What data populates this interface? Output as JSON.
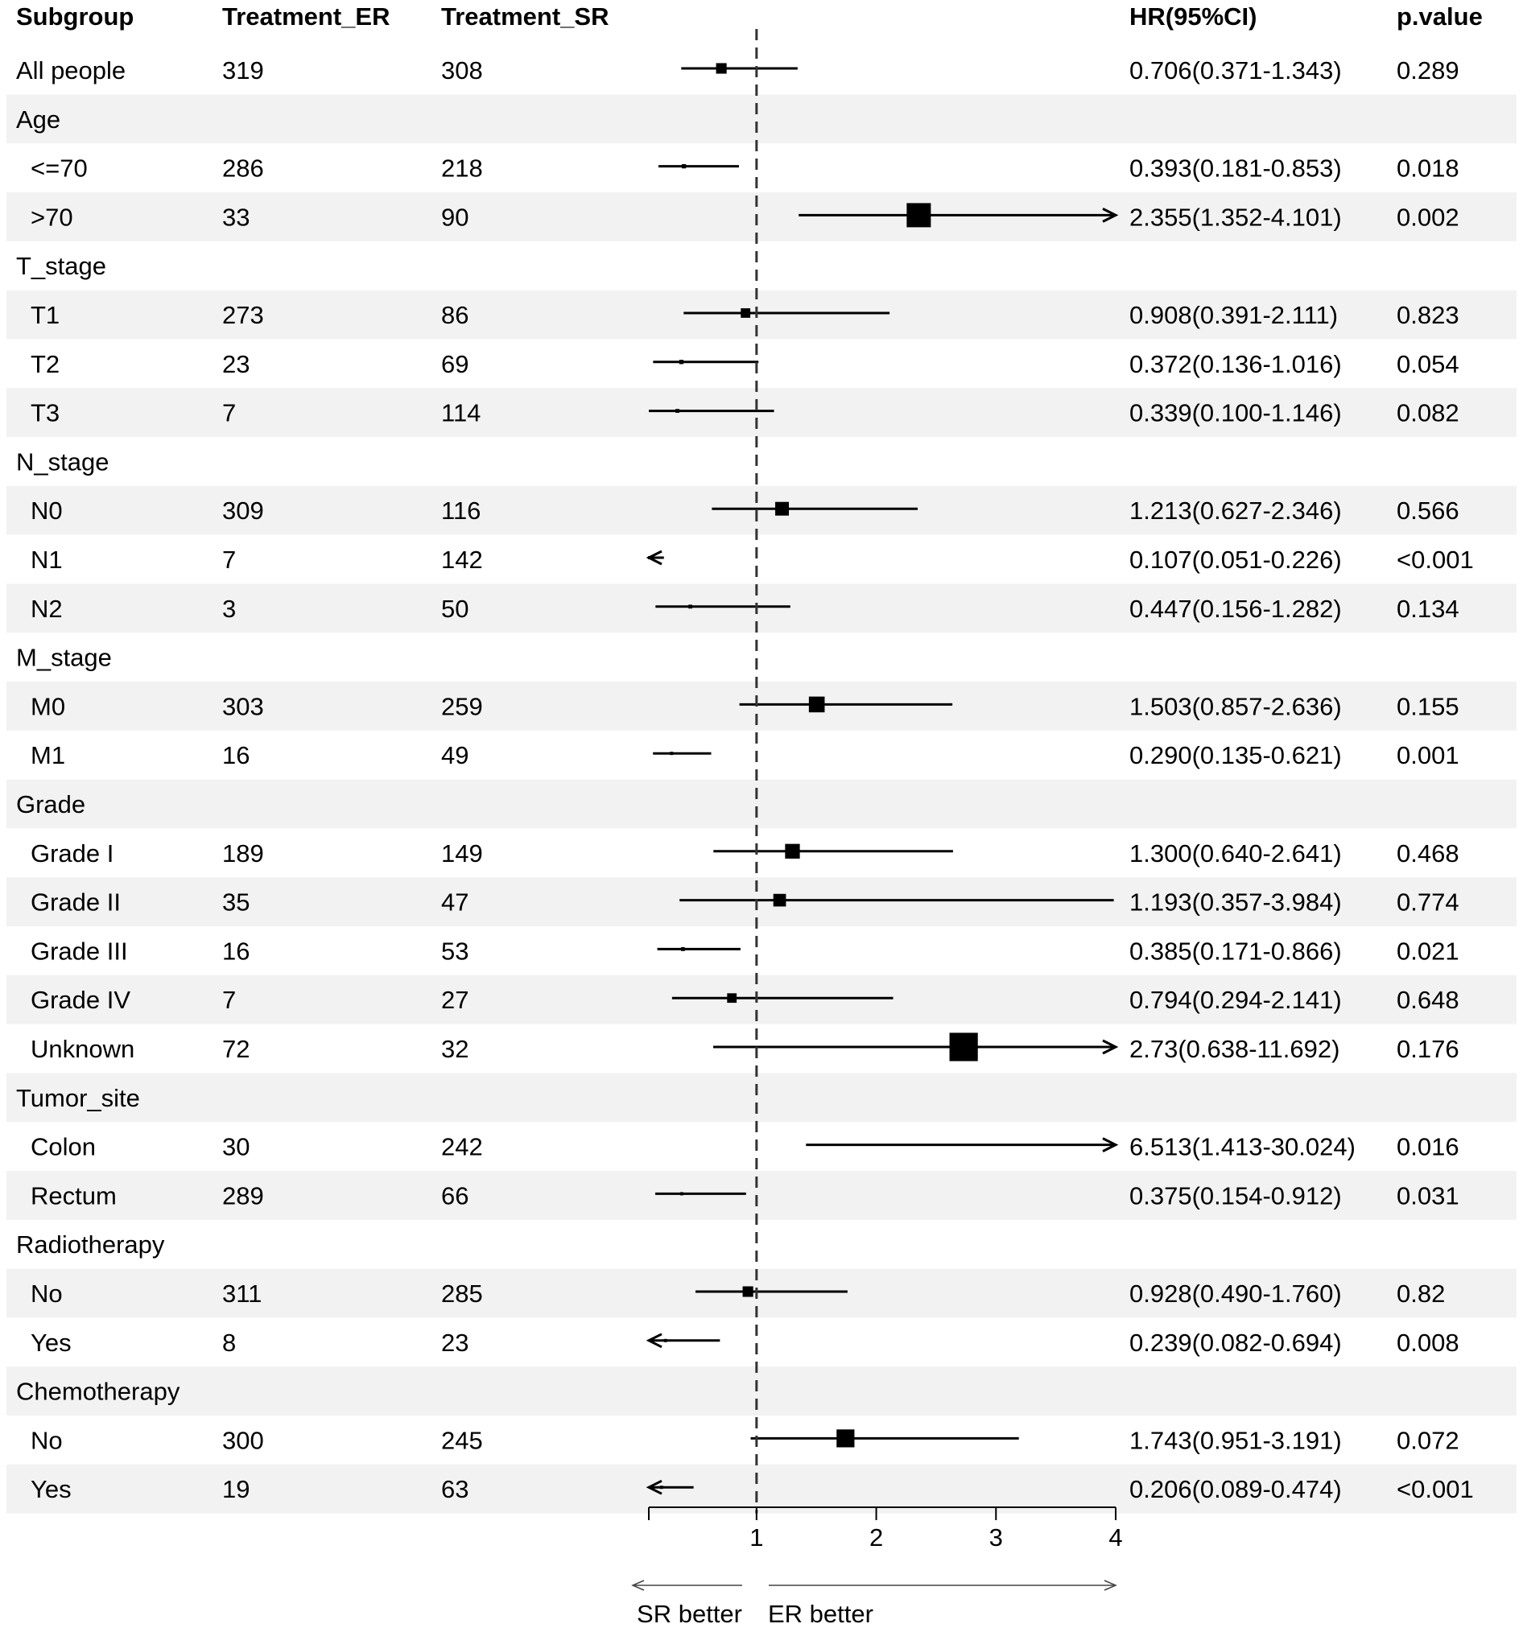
{
  "chart_data": {
    "type": "forest",
    "columns": {
      "subgroup": "Subgroup",
      "er": "Treatment_ER",
      "sr": "Treatment_SR",
      "hr": "HR(95%CI)",
      "p": "p.value"
    },
    "rows": [
      {
        "label": "All people",
        "indent": false,
        "header": false,
        "er": "319",
        "sr": "308",
        "hr_text": "0.706(0.371-1.343)",
        "p": "0.289",
        "hr": 0.706,
        "lo": 0.371,
        "hi": 1.343,
        "weight": 0.35
      },
      {
        "label": "Age",
        "header": true
      },
      {
        "label": "<=70",
        "indent": true,
        "header": false,
        "er": "286",
        "sr": "218",
        "hr_text": "0.393(0.181-0.853)",
        "p": "0.018",
        "hr": 0.393,
        "lo": 0.181,
        "hi": 0.853,
        "weight": 0.05
      },
      {
        "label": ">70",
        "indent": true,
        "header": false,
        "er": "33",
        "sr": "90",
        "hr_text": "2.355(1.352-4.101)",
        "p": "0.002",
        "hr": 2.355,
        "lo": 1.352,
        "hi": 4.101,
        "weight": 1.0
      },
      {
        "label": "T_stage",
        "header": true
      },
      {
        "label": "T1",
        "indent": true,
        "header": false,
        "er": "273",
        "sr": "86",
        "hr_text": "0.908(0.391-2.111)",
        "p": "0.823",
        "hr": 0.908,
        "lo": 0.391,
        "hi": 2.111,
        "weight": 0.3
      },
      {
        "label": "T2",
        "indent": true,
        "header": false,
        "er": "23",
        "sr": "69",
        "hr_text": "0.372(0.136-1.016)",
        "p": "0.054",
        "hr": 0.372,
        "lo": 0.136,
        "hi": 1.016,
        "weight": 0.05
      },
      {
        "label": "T3",
        "indent": true,
        "header": false,
        "er": "7",
        "sr": "114",
        "hr_text": "0.339(0.100-1.146)",
        "p": "0.082",
        "hr": 0.339,
        "lo": 0.1,
        "hi": 1.146,
        "weight": 0.03
      },
      {
        "label": "N_stage",
        "header": true
      },
      {
        "label": "N0",
        "indent": true,
        "header": false,
        "er": "309",
        "sr": "116",
        "hr_text": "1.213(0.627-2.346)",
        "p": "0.566",
        "hr": 1.213,
        "lo": 0.627,
        "hi": 2.346,
        "weight": 0.5
      },
      {
        "label": "N1",
        "indent": true,
        "header": false,
        "er": "7",
        "sr": "142",
        "hr_text": "0.107(0.051-0.226)",
        "p": "<0.001",
        "hr": 0.107,
        "lo": 0.051,
        "hi": 0.226,
        "weight": 0.0
      },
      {
        "label": "N2",
        "indent": true,
        "header": false,
        "er": "3",
        "sr": "50",
        "hr_text": "0.447(0.156-1.282)",
        "p": "0.134",
        "hr": 0.447,
        "lo": 0.156,
        "hi": 1.282,
        "weight": 0.03
      },
      {
        "label": "M_stage",
        "header": true
      },
      {
        "label": "M0",
        "indent": true,
        "header": false,
        "er": "303",
        "sr": "259",
        "hr_text": "1.503(0.857-2.636)",
        "p": "0.155",
        "hr": 1.503,
        "lo": 0.857,
        "hi": 2.636,
        "weight": 0.6
      },
      {
        "label": "M1",
        "indent": true,
        "header": false,
        "er": "16",
        "sr": "49",
        "hr_text": "0.290(0.135-0.621)",
        "p": "0.001",
        "hr": 0.29,
        "lo": 0.135,
        "hi": 0.621,
        "weight": 0.0
      },
      {
        "label": "Grade",
        "header": true
      },
      {
        "label": "Grade I",
        "indent": true,
        "header": false,
        "er": "189",
        "sr": "149",
        "hr_text": "1.300(0.640-2.641)",
        "p": "0.468",
        "hr": 1.3,
        "lo": 0.64,
        "hi": 2.641,
        "weight": 0.55
      },
      {
        "label": "Grade II",
        "indent": true,
        "header": false,
        "er": "35",
        "sr": "47",
        "hr_text": "1.193(0.357-3.984)",
        "p": "0.774",
        "hr": 1.193,
        "lo": 0.357,
        "hi": 3.984,
        "weight": 0.45
      },
      {
        "label": "Grade III",
        "indent": true,
        "header": false,
        "er": "16",
        "sr": "53",
        "hr_text": "0.385(0.171-0.866)",
        "p": "0.021",
        "hr": 0.385,
        "lo": 0.171,
        "hi": 0.866,
        "weight": 0.03
      },
      {
        "label": "Grade IV",
        "indent": true,
        "header": false,
        "er": "7",
        "sr": "27",
        "hr_text": "0.794(0.294-2.141)",
        "p": "0.648",
        "hr": 0.794,
        "lo": 0.294,
        "hi": 2.141,
        "weight": 0.3
      },
      {
        "label": "Unknown",
        "indent": true,
        "header": false,
        "er": "72",
        "sr": "32",
        "hr_text": "2.73(0.638-11.692)",
        "p": "0.176",
        "hr": 2.73,
        "lo": 0.638,
        "hi": 11.692,
        "weight": 1.2
      },
      {
        "label": "Tumor_site",
        "header": true
      },
      {
        "label": "Colon",
        "indent": true,
        "header": false,
        "er": "30",
        "sr": "242",
        "hr_text": "6.513(1.413-30.024)",
        "p": "0.016",
        "hr": 6.513,
        "lo": 1.413,
        "hi": 30.024,
        "weight": 0.0
      },
      {
        "label": "Rectum",
        "indent": true,
        "header": false,
        "er": "289",
        "sr": "66",
        "hr_text": "0.375(0.154-0.912)",
        "p": "0.031",
        "hr": 0.375,
        "lo": 0.154,
        "hi": 0.912,
        "weight": 0.0
      },
      {
        "label": "Radiotherapy",
        "header": true
      },
      {
        "label": "No",
        "indent": true,
        "header": false,
        "er": "311",
        "sr": "285",
        "hr_text": "0.928(0.490-1.760)",
        "p": "0.82",
        "hr": 0.928,
        "lo": 0.49,
        "hi": 1.76,
        "weight": 0.35
      },
      {
        "label": "Yes",
        "indent": true,
        "header": false,
        "er": "8",
        "sr": "23",
        "hr_text": "0.239(0.082-0.694)",
        "p": "0.008",
        "hr": 0.239,
        "lo": 0.082,
        "hi": 0.694,
        "weight": 0.0
      },
      {
        "label": "Chemotherapy",
        "header": true
      },
      {
        "label": "No",
        "indent": true,
        "header": false,
        "er": "300",
        "sr": "245",
        "hr_text": "1.743(0.951-3.191)",
        "p": "0.072",
        "hr": 1.743,
        "lo": 0.951,
        "hi": 3.191,
        "weight": 0.7
      },
      {
        "label": "Yes",
        "indent": true,
        "header": false,
        "er": "19",
        "sr": "63",
        "hr_text": "0.206(0.089-0.474)",
        "p": "<0.001",
        "hr": 0.206,
        "lo": 0.089,
        "hi": 0.474,
        "weight": 0.0
      }
    ],
    "x_axis": {
      "ticks": [
        "1",
        "2",
        "3",
        "4"
      ],
      "tick_values": [
        1,
        2,
        3,
        4
      ],
      "range": [
        0.1,
        4
      ],
      "reference_line": 1
    },
    "direction_labels": {
      "left": "SR better",
      "right": "ER better"
    }
  }
}
